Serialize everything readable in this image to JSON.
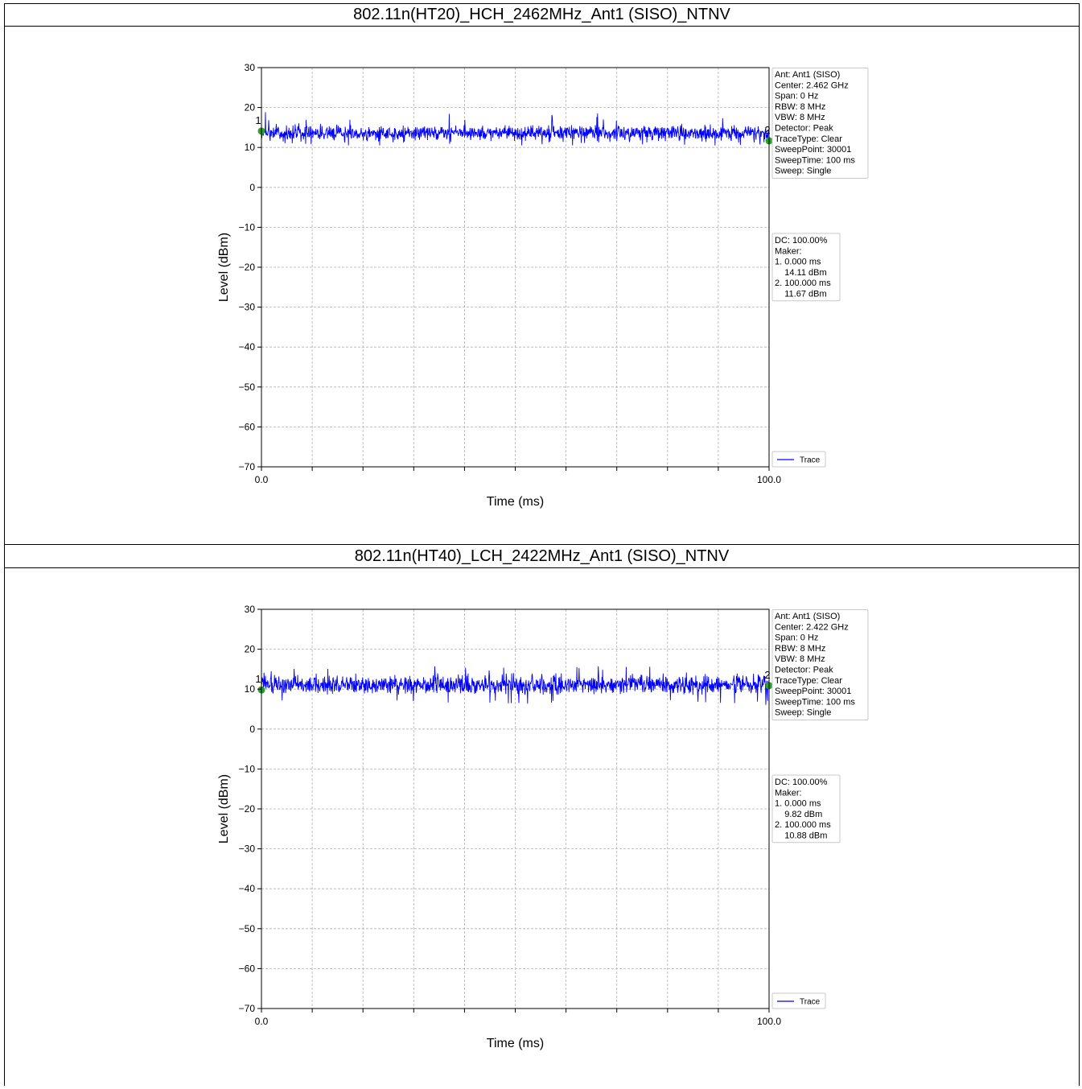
{
  "charts": [
    {
      "heading": "802.11n(HT20)_HCH_2462MHz_Ant1 (SISO)_NTNV",
      "info_lines": [
        "Ant: Ant1 (SISO)",
        "Center: 2.462 GHz",
        "Span: 0 Hz",
        "RBW: 8 MHz",
        "VBW: 8 MHz",
        "Detector: Peak",
        "TraceType: Clear",
        "SweepPoint: 30001",
        "SweepTime: 100 ms",
        "Sweep: Single"
      ],
      "marker_lines": [
        "DC: 100.00%",
        "Maker:",
        "1. 0.000 ms",
        "    14.11 dBm",
        "2. 100.000 ms",
        "    11.67 dBm"
      ],
      "legend_label": "Trace"
    },
    {
      "heading": "802.11n(HT40)_LCH_2422MHz_Ant1 (SISO)_NTNV",
      "info_lines": [
        "Ant: Ant1 (SISO)",
        "Center: 2.422 GHz",
        "Span: 0 Hz",
        "RBW: 8 MHz",
        "VBW: 8 MHz",
        "Detector: Peak",
        "TraceType: Clear",
        "SweepPoint: 30001",
        "SweepTime: 100 ms",
        "Sweep: Single"
      ],
      "marker_lines": [
        "DC: 100.00%",
        "Maker:",
        "1. 0.000 ms",
        "    9.82 dBm",
        "2. 100.000 ms",
        "    10.88 dBm"
      ],
      "legend_label": "Trace"
    }
  ],
  "chart_data": [
    {
      "type": "line",
      "xlabel": "Time (ms)",
      "ylabel": "Level (dBm)",
      "xlim": [
        0,
        100
      ],
      "ylim": [
        -70,
        30
      ],
      "xticks": [
        0,
        100
      ],
      "xtick_labels": [
        "0.0",
        "100.0"
      ],
      "yticks": [
        30,
        20,
        10,
        0,
        -10,
        -20,
        -30,
        -40,
        -50,
        -60,
        -70
      ],
      "ytick_labels": [
        "30",
        "20",
        "10",
        "0",
        "−10",
        "−20",
        "−30",
        "−40",
        "−50",
        "−60",
        "−70"
      ],
      "grid": true,
      "legend_position": "lower-right outside",
      "series": [
        {
          "name": "Trace",
          "color": "#0000ff",
          "center": 13.5,
          "low": 10.5,
          "high": 19.2,
          "points": 30001
        }
      ],
      "markers": [
        {
          "label": "1",
          "x": 0.0,
          "y": 14.11
        },
        {
          "label": "2",
          "x": 100.0,
          "y": 11.67
        }
      ],
      "marker_color": "#2ca02c"
    },
    {
      "type": "line",
      "xlabel": "Time (ms)",
      "ylabel": "Level (dBm)",
      "xlim": [
        0,
        100
      ],
      "ylim": [
        -70,
        30
      ],
      "xticks": [
        0,
        100
      ],
      "xtick_labels": [
        "0.0",
        "100.0"
      ],
      "yticks": [
        30,
        20,
        10,
        0,
        -10,
        -20,
        -30,
        -40,
        -50,
        -60,
        -70
      ],
      "ytick_labels": [
        "30",
        "20",
        "10",
        "0",
        "−10",
        "−20",
        "−30",
        "−40",
        "−50",
        "−60",
        "−70"
      ],
      "grid": true,
      "legend_position": "lower-right outside",
      "series": [
        {
          "name": "Trace",
          "color": "#0000ff",
          "center": 10.8,
          "low": 6.0,
          "high": 15.8,
          "points": 30001
        }
      ],
      "markers": [
        {
          "label": "1",
          "x": 0.0,
          "y": 9.82
        },
        {
          "label": "2",
          "x": 100.0,
          "y": 10.88
        }
      ],
      "marker_color": "#2ca02c"
    }
  ]
}
